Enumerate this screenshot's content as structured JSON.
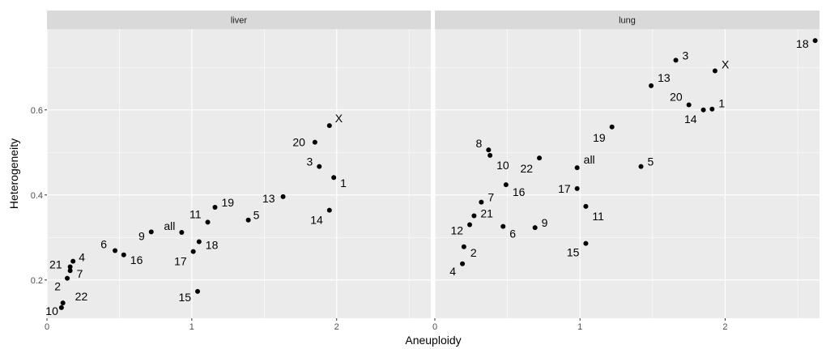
{
  "chart_data": {
    "type": "scatter",
    "xlabel": "Aneuploidy",
    "ylabel": "Heterogeneity",
    "xlim": [
      0,
      2.65
    ],
    "ylim": [
      0.11,
      0.79
    ],
    "x_ticks": [
      0,
      1,
      2
    ],
    "y_ticks": [
      0.2,
      0.4,
      0.6
    ],
    "grid": true,
    "facets": [
      {
        "name": "liver",
        "points": [
          {
            "label": "X",
            "x": 1.95,
            "y": 0.563
          },
          {
            "label": "20",
            "x": 1.85,
            "y": 0.524
          },
          {
            "label": "3",
            "x": 1.88,
            "y": 0.467
          },
          {
            "label": "1",
            "x": 1.98,
            "y": 0.441
          },
          {
            "label": "13",
            "x": 1.63,
            "y": 0.396
          },
          {
            "label": "14",
            "x": 1.95,
            "y": 0.364
          },
          {
            "label": "5",
            "x": 1.39,
            "y": 0.341
          },
          {
            "label": "19",
            "x": 1.16,
            "y": 0.371
          },
          {
            "label": "11",
            "x": 1.11,
            "y": 0.336
          },
          {
            "label": "all",
            "x": 0.93,
            "y": 0.312
          },
          {
            "label": "9",
            "x": 0.72,
            "y": 0.313
          },
          {
            "label": "18",
            "x": 1.05,
            "y": 0.29
          },
          {
            "label": "17",
            "x": 1.01,
            "y": 0.267
          },
          {
            "label": "6",
            "x": 0.47,
            "y": 0.269
          },
          {
            "label": "16",
            "x": 0.53,
            "y": 0.259
          },
          {
            "label": "15",
            "x": 1.04,
            "y": 0.173
          },
          {
            "label": "4",
            "x": 0.18,
            "y": 0.244
          },
          {
            "label": "21",
            "x": 0.16,
            "y": 0.231
          },
          {
            "label": "7",
            "x": 0.16,
            "y": 0.222
          },
          {
            "label": "2",
            "x": 0.14,
            "y": 0.204
          },
          {
            "label": "22",
            "x": 0.11,
            "y": 0.146
          },
          {
            "label": "10",
            "x": 0.1,
            "y": 0.135
          }
        ]
      },
      {
        "name": "lung",
        "points": [
          {
            "label": "18",
            "x": 2.62,
            "y": 0.763
          },
          {
            "label": "3",
            "x": 1.66,
            "y": 0.717
          },
          {
            "label": "X",
            "x": 1.93,
            "y": 0.692
          },
          {
            "label": "13",
            "x": 1.49,
            "y": 0.657
          },
          {
            "label": "20",
            "x": 1.75,
            "y": 0.612
          },
          {
            "label": "1",
            "x": 1.91,
            "y": 0.602
          },
          {
            "label": "14",
            "x": 1.85,
            "y": 0.6
          },
          {
            "label": "19",
            "x": 1.22,
            "y": 0.56
          },
          {
            "label": "8",
            "x": 0.37,
            "y": 0.506
          },
          {
            "label": "10",
            "x": 0.38,
            "y": 0.493
          },
          {
            "label": "22",
            "x": 0.72,
            "y": 0.487
          },
          {
            "label": "all",
            "x": 0.98,
            "y": 0.464
          },
          {
            "label": "5",
            "x": 1.42,
            "y": 0.467
          },
          {
            "label": "17",
            "x": 0.98,
            "y": 0.415
          },
          {
            "label": "16",
            "x": 0.49,
            "y": 0.424
          },
          {
            "label": "7",
            "x": 0.32,
            "y": 0.383
          },
          {
            "label": "11",
            "x": 1.04,
            "y": 0.373
          },
          {
            "label": "21",
            "x": 0.27,
            "y": 0.351
          },
          {
            "label": "12",
            "x": 0.24,
            "y": 0.33
          },
          {
            "label": "6",
            "x": 0.47,
            "y": 0.326
          },
          {
            "label": "9",
            "x": 0.69,
            "y": 0.323
          },
          {
            "label": "15",
            "x": 1.04,
            "y": 0.286
          },
          {
            "label": "2",
            "x": 0.2,
            "y": 0.278
          },
          {
            "label": "4",
            "x": 0.19,
            "y": 0.238
          }
        ]
      }
    ]
  }
}
